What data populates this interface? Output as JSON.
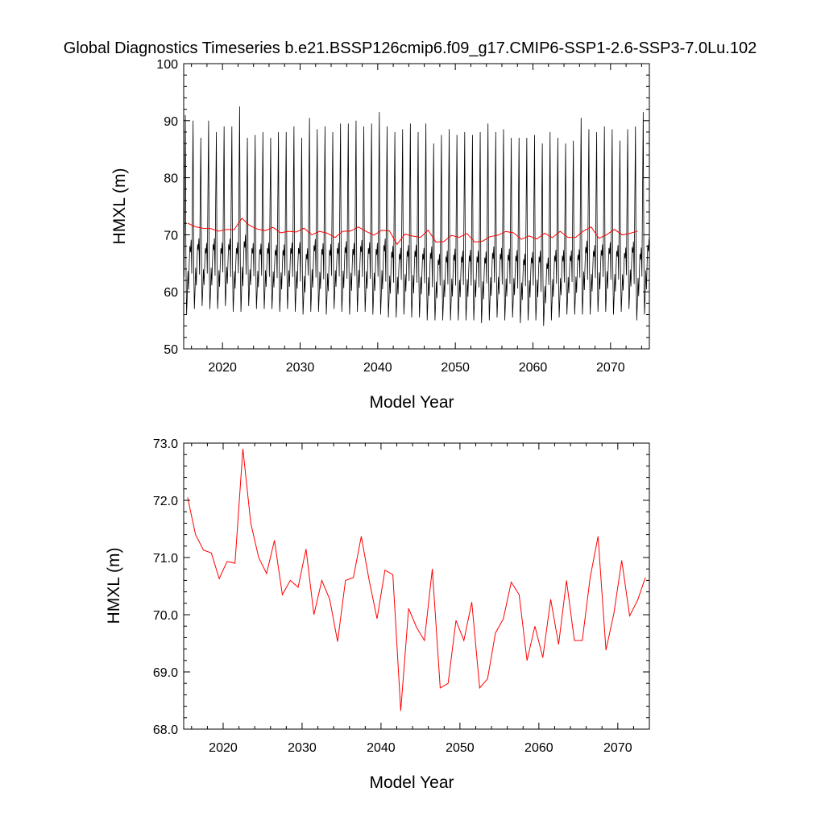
{
  "title": "Global Diagnostics Timeseries b.e21.BSSP126cmip6.f09_g17.CMIP6-SSP1-2.6-SSP3-7.0Lu.102",
  "chart_data": [
    {
      "type": "line",
      "xlabel": "Model Year",
      "ylabel": "HMXL (m)",
      "xlim": [
        2015,
        2075
      ],
      "ylim": [
        50,
        100
      ],
      "x_ticks": [
        "2020",
        "2030",
        "2040",
        "2050",
        "2060",
        "2070"
      ],
      "y_ticks": [
        "50",
        "60",
        "70",
        "80",
        "90",
        "100"
      ],
      "grid": false,
      "series": [
        {
          "color": "#000000",
          "description": "monthly values",
          "monthly_pattern": [
            64,
            78,
            90,
            66,
            58,
            61,
            65,
            62,
            66,
            69,
            68,
            70
          ],
          "annual_max": [
            91.0,
            90.0,
            87.0,
            90.0,
            88.0,
            89.0,
            89.0,
            92.5,
            87.0,
            87.5,
            88.0,
            87.0,
            88.0,
            88.0,
            89.0,
            87.0,
            90.5,
            88.5,
            89.0,
            88.0,
            89.5,
            89.5,
            90.0,
            89.0,
            89.5,
            91.5,
            89.0,
            88.0,
            88.5,
            89.5,
            88.0,
            89.5,
            86.0,
            87.5,
            88.5,
            87.5,
            88.0,
            87.5,
            88.0,
            89.5,
            88.0,
            88.5,
            87.0,
            87.0,
            87.0,
            87.5,
            86.0,
            88.0,
            87.0,
            86.0,
            86.5,
            90.5,
            88.5,
            88.0,
            89.0,
            88.5,
            86.5,
            88.5,
            89.0,
            91.5
          ],
          "annual_min": [
            56.0,
            57.0,
            57.5,
            57.0,
            57.0,
            57.5,
            56.5,
            56.5,
            57.5,
            57.0,
            57.0,
            57.0,
            56.5,
            57.0,
            56.5,
            56.0,
            56.5,
            56.5,
            56.0,
            57.0,
            56.5,
            56.0,
            56.5,
            56.5,
            56.0,
            56.0,
            55.5,
            55.5,
            56.0,
            55.5,
            55.5,
            55.0,
            55.0,
            55.0,
            55.0,
            55.0,
            55.0,
            55.0,
            54.5,
            55.0,
            55.5,
            55.0,
            55.5,
            54.5,
            55.0,
            55.0,
            54.0,
            55.0,
            55.5,
            56.0,
            56.0,
            56.0,
            56.0,
            56.5,
            56.5,
            56.0,
            56.5,
            57.0,
            55.0,
            56.0
          ]
        },
        {
          "color": "#ff0000",
          "description": "annual mean",
          "ref": "annual"
        }
      ]
    },
    {
      "type": "line",
      "xlabel": "Model Year",
      "ylabel": "HMXL (m)",
      "xlim": [
        2015,
        2074
      ],
      "ylim": [
        68.0,
        73.0
      ],
      "x_ticks": [
        "2020",
        "2030",
        "2040",
        "2050",
        "2060",
        "2070"
      ],
      "y_ticks": [
        "68.0",
        "69.0",
        "70.0",
        "71.0",
        "72.0",
        "73.0"
      ],
      "grid": false,
      "series": [
        {
          "color": "#ff0000",
          "x": [
            2015.5,
            2016.5,
            2017.5,
            2018.5,
            2019.5,
            2020.5,
            2021.5,
            2022.5,
            2023.5,
            2024.5,
            2025.5,
            2026.5,
            2027.5,
            2028.5,
            2029.5,
            2030.5,
            2031.5,
            2032.5,
            2033.5,
            2034.5,
            2035.5,
            2036.5,
            2037.5,
            2038.5,
            2039.5,
            2040.5,
            2041.5,
            2042.5,
            2043.5,
            2044.5,
            2045.5,
            2046.5,
            2047.5,
            2048.5,
            2049.5,
            2050.5,
            2051.5,
            2052.5,
            2053.5,
            2054.5,
            2055.5,
            2056.5,
            2057.5,
            2058.5,
            2059.5,
            2060.5,
            2061.5,
            2062.5,
            2063.5,
            2064.5,
            2065.5,
            2066.5,
            2067.5,
            2068.5,
            2069.5,
            2070.5,
            2071.5,
            2072.5,
            2073.5
          ],
          "values": [
            72.05,
            71.4,
            71.13,
            71.08,
            70.63,
            70.93,
            70.9,
            72.9,
            71.6,
            71.0,
            70.72,
            71.3,
            70.35,
            70.6,
            70.48,
            71.15,
            70.0,
            70.6,
            70.27,
            69.53,
            70.6,
            70.65,
            71.37,
            70.6,
            69.93,
            70.78,
            70.7,
            68.32,
            70.11,
            69.78,
            69.55,
            70.8,
            68.72,
            68.8,
            69.9,
            69.55,
            70.22,
            68.72,
            68.88,
            69.68,
            69.93,
            70.57,
            70.35,
            69.2,
            69.8,
            69.25,
            70.27,
            69.48,
            70.6,
            69.55,
            69.55,
            70.65,
            71.37,
            69.38,
            70.02,
            70.95,
            69.98,
            70.25,
            70.65
          ]
        }
      ]
    }
  ]
}
